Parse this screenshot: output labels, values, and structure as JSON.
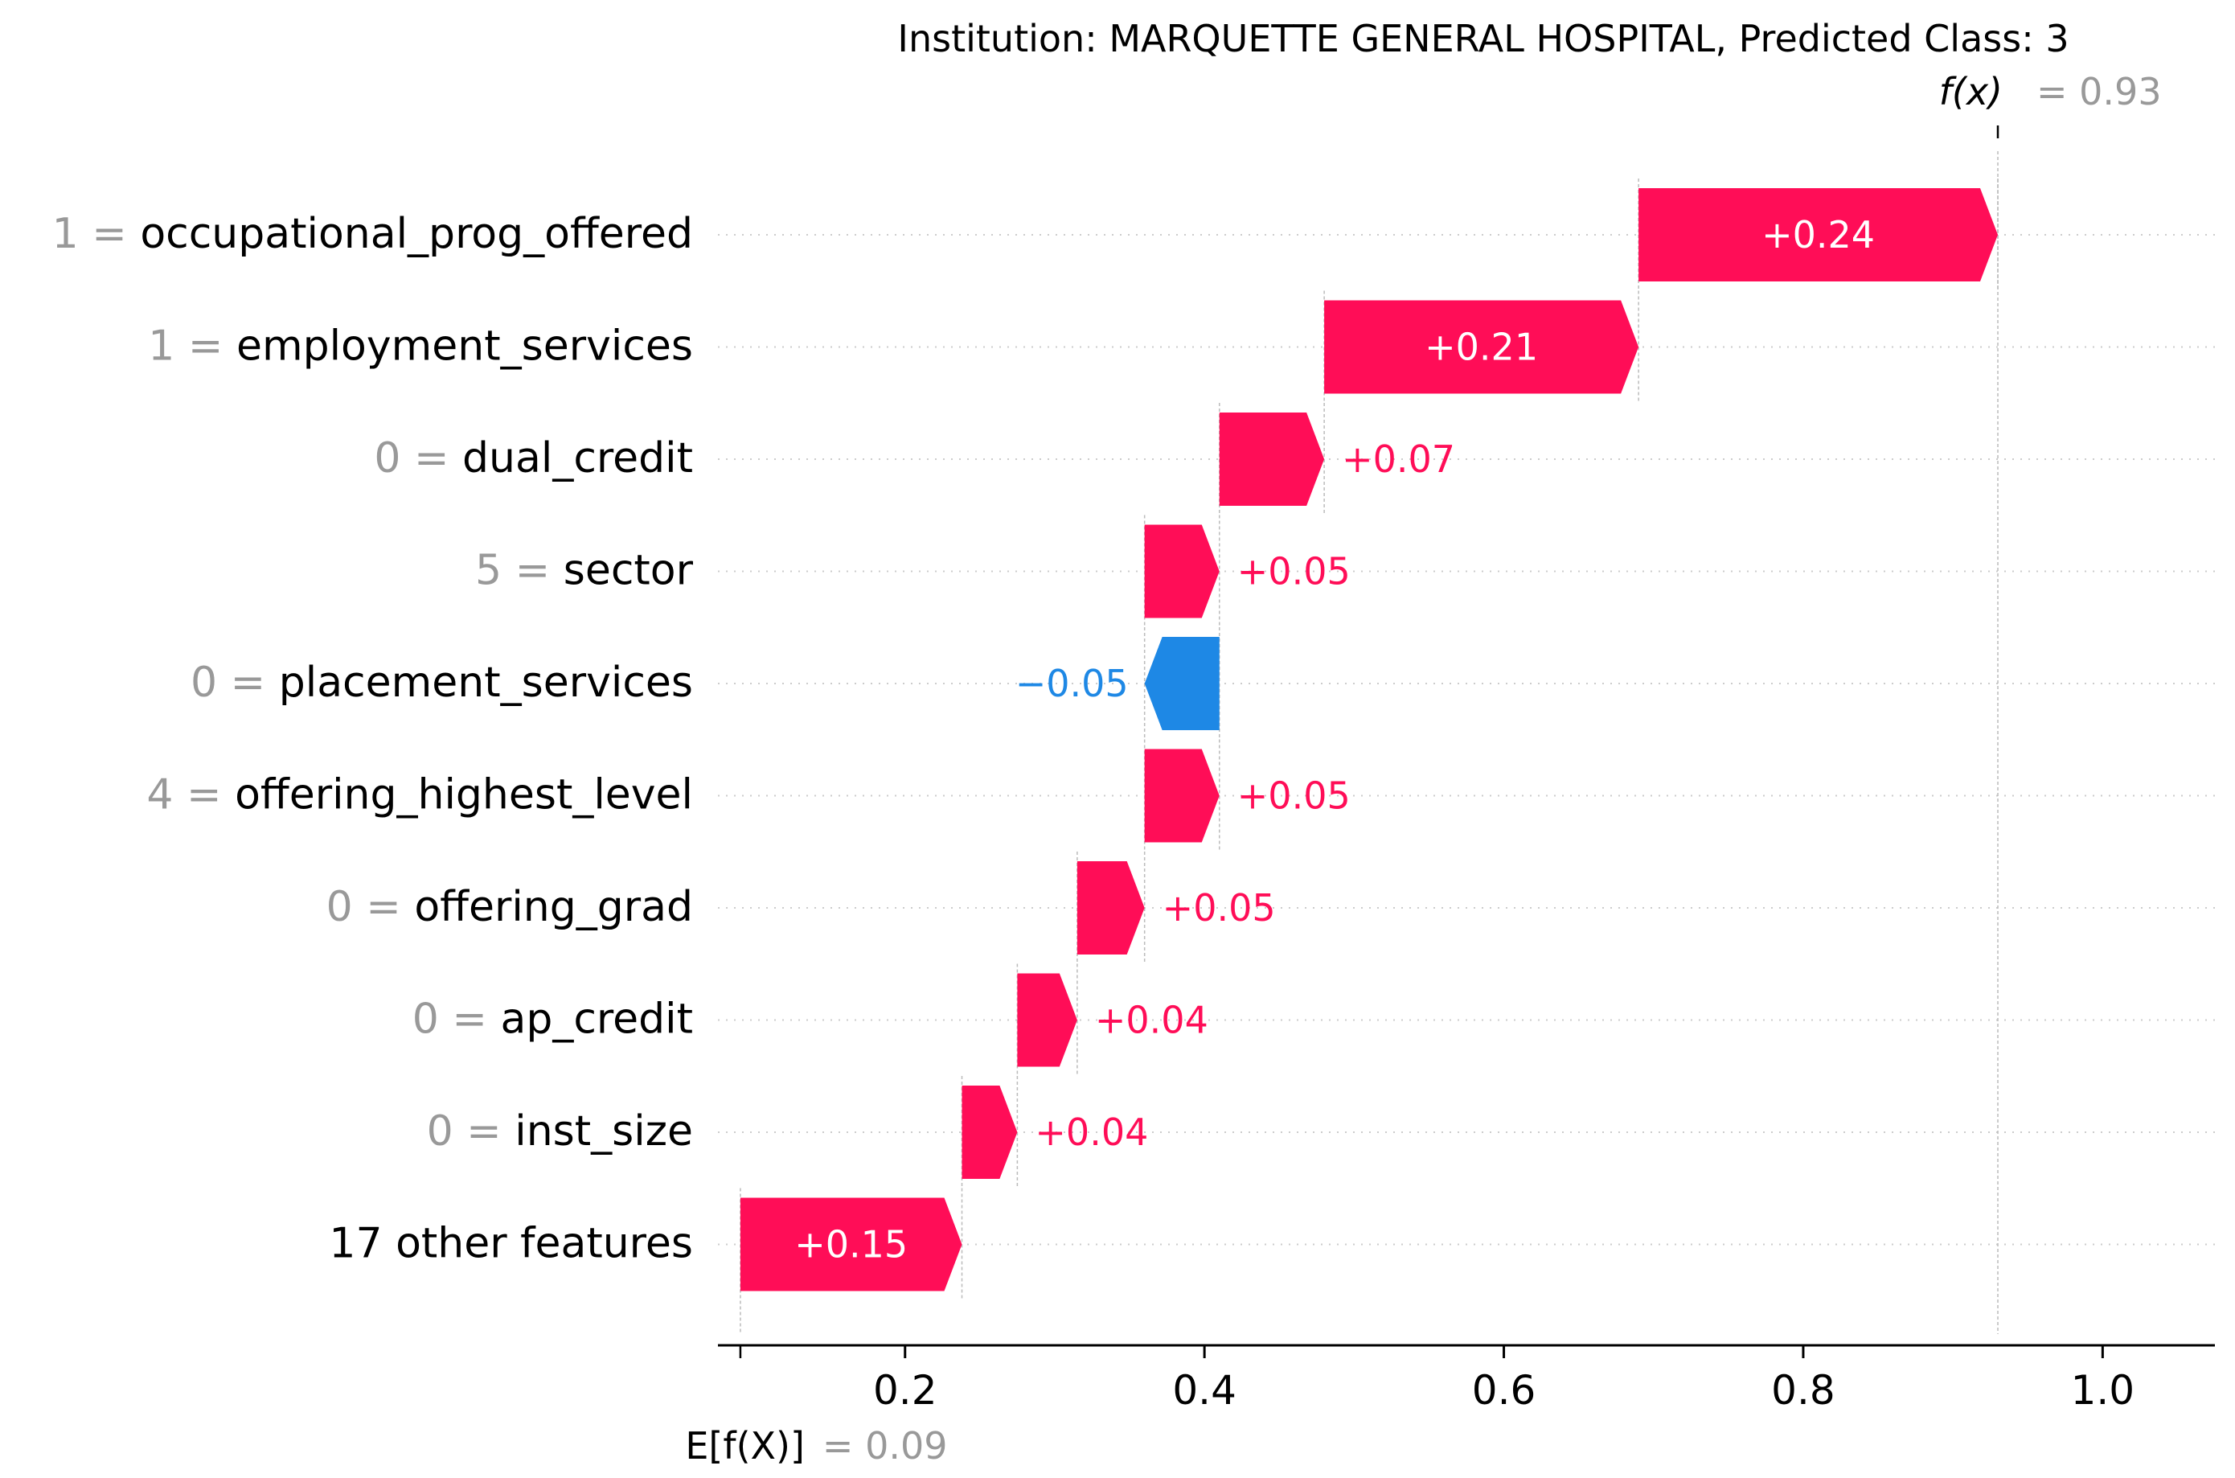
{
  "chart_data": {
    "type": "waterfall",
    "title": "Institution: MARQUETTE GENERAL HOSPITAL, Predicted Class: 3",
    "fx_label": "f(x)",
    "fx_value": 0.93,
    "fx_value_text": "= 0.93",
    "base_label": "E[f(X)]",
    "base_value": 0.09,
    "base_value_text": "= 0.09",
    "xlim": [
      0.075,
      1.075
    ],
    "xticks": [
      0.2,
      0.4,
      0.6,
      0.8,
      1.0
    ],
    "xtick_labels": [
      "0.2",
      "0.4",
      "0.6",
      "0.8",
      "1.0"
    ],
    "grid": false,
    "colors": {
      "positive": "#ff0d57",
      "negative": "#1e88e5",
      "label_gray": "#999999",
      "text": "#000000"
    },
    "rows": [
      {
        "value_label": "1",
        "feature": "occupational_prog_offered",
        "start": 0.69,
        "end": 0.93,
        "contribution": 0.24,
        "label": "+0.24"
      },
      {
        "value_label": "1",
        "feature": "employment_services",
        "start": 0.48,
        "end": 0.69,
        "contribution": 0.21,
        "label": "+0.21"
      },
      {
        "value_label": "0",
        "feature": "dual_credit",
        "start": 0.41,
        "end": 0.48,
        "contribution": 0.07,
        "label": "+0.07"
      },
      {
        "value_label": "5",
        "feature": "sector",
        "start": 0.36,
        "end": 0.41,
        "contribution": 0.05,
        "label": "+0.05"
      },
      {
        "value_label": "0",
        "feature": "placement_services",
        "start": 0.41,
        "end": 0.36,
        "contribution": -0.05,
        "label": "−0.05"
      },
      {
        "value_label": "4",
        "feature": "offering_highest_level",
        "start": 0.36,
        "end": 0.41,
        "contribution": 0.05,
        "label": "+0.05"
      },
      {
        "value_label": "0",
        "feature": "offering_grad",
        "start": 0.315,
        "end": 0.36,
        "contribution": 0.05,
        "label": "+0.05"
      },
      {
        "value_label": "0",
        "feature": "ap_credit",
        "start": 0.275,
        "end": 0.315,
        "contribution": 0.04,
        "label": "+0.04"
      },
      {
        "value_label": "0",
        "feature": "inst_size",
        "start": 0.238,
        "end": 0.275,
        "contribution": 0.04,
        "label": "+0.04"
      },
      {
        "value_label": "",
        "feature": "17 other features",
        "start": 0.09,
        "end": 0.238,
        "contribution": 0.15,
        "label": "+0.15"
      }
    ]
  }
}
